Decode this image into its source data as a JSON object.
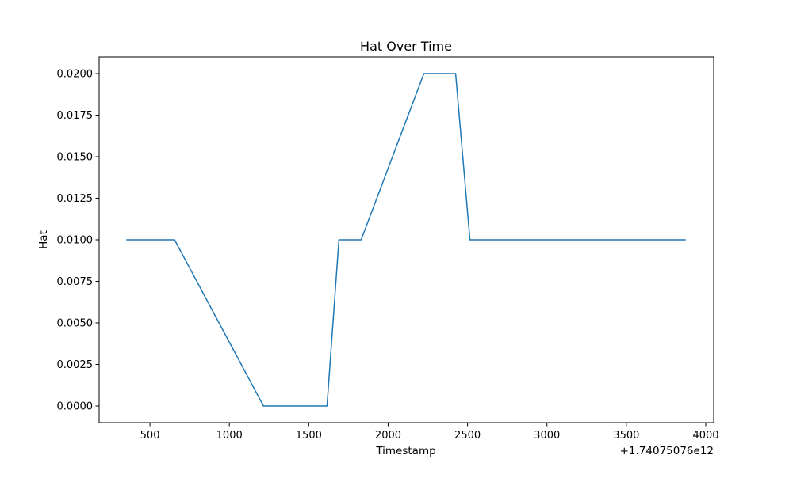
{
  "chart_data": {
    "type": "line",
    "title": "Hat Over Time",
    "xlabel": "Timestamp",
    "ylabel": "Hat",
    "x_offset_label": "+1.74075076e12",
    "xlim": [
      180,
      4050
    ],
    "ylim": [
      -0.001,
      0.021
    ],
    "x_ticks": [
      500,
      1000,
      1500,
      2000,
      2500,
      3000,
      3500,
      4000
    ],
    "x_tick_labels": [
      "500",
      "1000",
      "1500",
      "2000",
      "2500",
      "3000",
      "3500",
      "4000"
    ],
    "y_ticks": [
      0.0,
      0.0025,
      0.005,
      0.0075,
      0.01,
      0.0125,
      0.015,
      0.0175,
      0.02
    ],
    "y_tick_labels": [
      "0.0000",
      "0.0025",
      "0.0050",
      "0.0075",
      "0.0100",
      "0.0125",
      "0.0150",
      "0.0175",
      "0.0200"
    ],
    "grid": false,
    "series": [
      {
        "color": "#1f77b4",
        "x": [
          355,
          655,
          1215,
          1615,
          1690,
          1830,
          2225,
          2425,
          2515,
          3870
        ],
        "y": [
          0.01,
          0.01,
          0.0,
          0.0,
          0.01,
          0.01,
          0.02,
          0.02,
          0.01,
          0.01
        ]
      }
    ]
  }
}
